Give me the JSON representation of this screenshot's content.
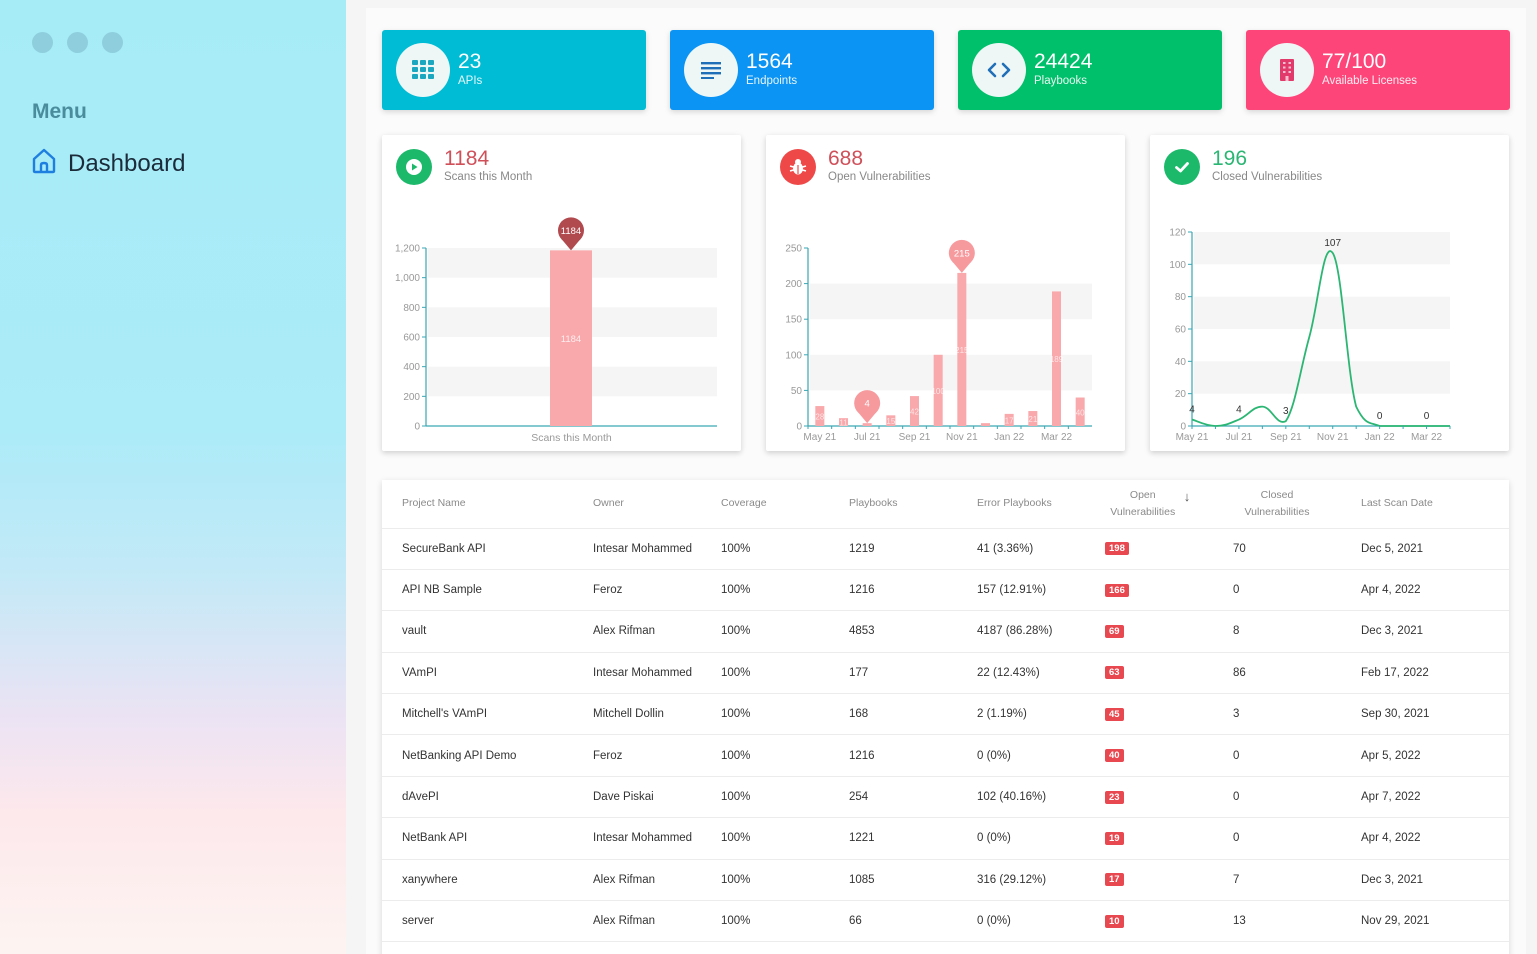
{
  "sidebar": {
    "menu_label": "Menu",
    "items": [
      {
        "label": "Dashboard",
        "icon": "home-icon",
        "active": true
      }
    ]
  },
  "stats": [
    {
      "value": "23",
      "label": "APIs",
      "icon": "grid-icon",
      "color": "#00bcd4"
    },
    {
      "value": "1564",
      "label": "Endpoints",
      "icon": "list-icon",
      "color": "#0b94f3"
    },
    {
      "value": "24424",
      "label": "Playbooks",
      "icon": "code-icon",
      "color": "#00c06b"
    },
    {
      "value": "77/100",
      "label": "Available Licenses",
      "icon": "building-icon",
      "color": "#fe4579"
    }
  ],
  "cards": {
    "scans": {
      "value": "1184",
      "label": "Scans this Month",
      "icon": "play-icon"
    },
    "open": {
      "value": "688",
      "label": "Open Vulnerabilities",
      "icon": "bug-icon"
    },
    "closed": {
      "value": "196",
      "label": "Closed Vulnerabilities",
      "icon": "check-icon"
    }
  },
  "chart_data": [
    {
      "type": "bar",
      "title": "Scans this Month",
      "categories": [
        "Scans this Month"
      ],
      "values": [
        1184
      ],
      "xlabel": "Scans this Month",
      "ylim": [
        0,
        1200
      ],
      "yticks": [
        0,
        200,
        400,
        600,
        800,
        1000,
        1200
      ],
      "ytick_labels": [
        "0",
        "200",
        "400",
        "600",
        "800",
        "1,000",
        "1,200"
      ],
      "annotations": [
        {
          "type": "max-pin",
          "label": "1184"
        }
      ],
      "color": "#f9a8ab",
      "grid": true
    },
    {
      "type": "bar",
      "title": "Open Vulnerabilities",
      "categories": [
        "May 21",
        "Jun 21",
        "Jul 21",
        "Aug 21",
        "Sep 21",
        "Oct 21",
        "Nov 21",
        "Dec 21",
        "Jan 22",
        "Feb 22",
        "Mar 22",
        "Apr 22"
      ],
      "xtick_labels": [
        "May 21",
        "Jul 21",
        "Sep 21",
        "Nov 21",
        "Jan 22",
        "Mar 22"
      ],
      "values": [
        28,
        11,
        4,
        15,
        42,
        100,
        215,
        4,
        17,
        21,
        189,
        40
      ],
      "ylim": [
        0,
        250
      ],
      "yticks": [
        0,
        50,
        100,
        150,
        200,
        250
      ],
      "annotations": [
        {
          "type": "max-pin",
          "label": "215",
          "index": 6
        },
        {
          "type": "min-pin",
          "label": "4",
          "index": 2
        }
      ],
      "color": "#f9a8ab",
      "grid": true
    },
    {
      "type": "line",
      "title": "Closed Vulnerabilities",
      "categories": [
        "May 21",
        "Jun 21",
        "Jul 21",
        "Aug 21",
        "Sep 21",
        "Oct 21",
        "Nov 21",
        "Dec 21",
        "Jan 22",
        "Feb 22",
        "Mar 22",
        "Apr 22"
      ],
      "xtick_labels": [
        "May 21",
        "Jul 21",
        "Sep 21",
        "Nov 21",
        "Jan 22",
        "Mar 22"
      ],
      "values": [
        4,
        0,
        4,
        12,
        3,
        55,
        107,
        12,
        0,
        0,
        0,
        0
      ],
      "point_labels": {
        "0": "4",
        "2": "4",
        "4": "3",
        "6": "107",
        "8": "0",
        "10": "0"
      },
      "ylim": [
        0,
        120
      ],
      "yticks": [
        0,
        20,
        40,
        60,
        80,
        100,
        120
      ],
      "color": "#2bb673",
      "grid": true
    }
  ],
  "table": {
    "headers": [
      "Project Name",
      "Owner",
      "Coverage",
      "Playbooks",
      "Error Playbooks",
      "Open Vulnerabilities",
      "Closed Vulnerabilities",
      "Last Scan Date"
    ],
    "sort_column": "Open Vulnerabilities",
    "sort_direction": "desc",
    "rows": [
      {
        "project": "SecureBank API",
        "owner": "Intesar Mohammed",
        "coverage": "100%",
        "playbooks": "1219",
        "error": "41 (3.36%)",
        "open": "198",
        "closed": "70",
        "date": "Dec 5, 2021"
      },
      {
        "project": "API NB Sample",
        "owner": "Feroz",
        "coverage": "100%",
        "playbooks": "1216",
        "error": "157 (12.91%)",
        "open": "166",
        "closed": "0",
        "date": "Apr 4, 2022"
      },
      {
        "project": "vault",
        "owner": "Alex Rifman",
        "coverage": "100%",
        "playbooks": "4853",
        "error": "4187 (86.28%)",
        "open": "69",
        "closed": "8",
        "date": "Dec 3, 2021"
      },
      {
        "project": "VAmPI",
        "owner": "Intesar Mohammed",
        "coverage": "100%",
        "playbooks": "177",
        "error": "22 (12.43%)",
        "open": "63",
        "closed": "86",
        "date": "Feb 17, 2022"
      },
      {
        "project": "Mitchell's VAmPI",
        "owner": "Mitchell Dollin",
        "coverage": "100%",
        "playbooks": "168",
        "error": "2 (1.19%)",
        "open": "45",
        "closed": "3",
        "date": "Sep 30, 2021"
      },
      {
        "project": "NetBanking API Demo",
        "owner": "Feroz",
        "coverage": "100%",
        "playbooks": "1216",
        "error": "0 (0%)",
        "open": "40",
        "closed": "0",
        "date": "Apr 5, 2022"
      },
      {
        "project": "dAvePI",
        "owner": "Dave Piskai",
        "coverage": "100%",
        "playbooks": "254",
        "error": "102 (40.16%)",
        "open": "23",
        "closed": "0",
        "date": "Apr 7, 2022"
      },
      {
        "project": "NetBank API",
        "owner": "Intesar Mohammed",
        "coverage": "100%",
        "playbooks": "1221",
        "error": "0 (0%)",
        "open": "19",
        "closed": "0",
        "date": "Apr 4, 2022"
      },
      {
        "project": "xanywhere",
        "owner": "Alex Rifman",
        "coverage": "100%",
        "playbooks": "1085",
        "error": "316 (29.12%)",
        "open": "17",
        "closed": "7",
        "date": "Dec 3, 2021"
      },
      {
        "project": "server",
        "owner": "Alex Rifman",
        "coverage": "100%",
        "playbooks": "66",
        "error": "0 (0%)",
        "open": "10",
        "closed": "13",
        "date": "Nov 29, 2021"
      }
    ]
  },
  "colors": {
    "open_badge": "#e8484f",
    "chart_axis": "#3aa6b3",
    "bar": "#f9a8ab",
    "line": "#2bb673",
    "value_red": "#d0505a",
    "value_green": "#2bb673"
  }
}
